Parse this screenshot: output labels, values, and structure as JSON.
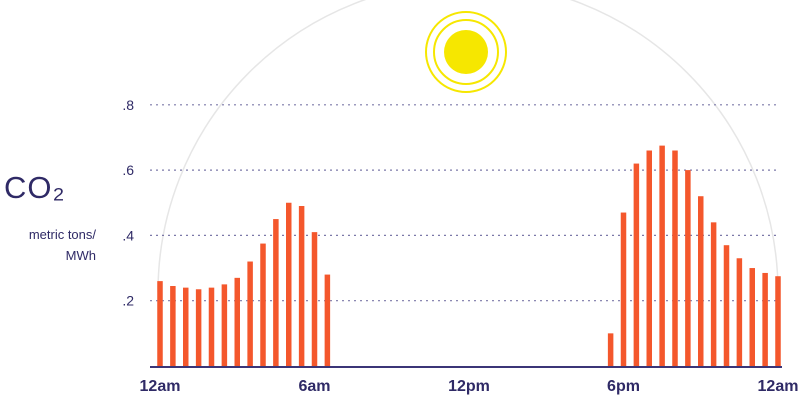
{
  "ylabel_main": "CO₂",
  "ylabel_unit": "metric tons/ MWh",
  "ylabel_unit_line1": "metric tons/",
  "ylabel_unit_line2": "MWh",
  "colors": {
    "bars": "#f4572c",
    "axis": "#3b3577",
    "text": "#2f2a66",
    "grid": "#7b78a8",
    "arc": "#e6e6e6",
    "sun": "#f6e700",
    "moon": "#2aaeea"
  },
  "icons": {
    "sun": "sun-icon",
    "moon_left": "moon-icon",
    "moon_right": "moon-icon"
  },
  "chart_data": {
    "type": "bar",
    "title": "",
    "xlabel": "",
    "ylabel": "CO₂ metric tons/ MWh",
    "ylim": [
      0,
      0.85
    ],
    "yticks": [
      0.2,
      0.4,
      0.6,
      0.8
    ],
    "ytick_labels": [
      ".2",
      ".4",
      ".6",
      ".8"
    ],
    "grid": "horizontal dotted",
    "xlim_hours": [
      0,
      24
    ],
    "xticks_hours": [
      0,
      6,
      12,
      18,
      24
    ],
    "xtick_labels": [
      "12am",
      "6am",
      "12pm",
      "6pm",
      "12am"
    ],
    "bar_hours": [
      0,
      0.5,
      1,
      1.5,
      2,
      2.5,
      3,
      3.5,
      4,
      4.5,
      5,
      5.5,
      6,
      6.5,
      17.5,
      18,
      18.5,
      19,
      19.5,
      20,
      20.5,
      21,
      21.5,
      22,
      22.5,
      23,
      23.5,
      24
    ],
    "values": [
      0.26,
      0.245,
      0.24,
      0.235,
      0.24,
      0.25,
      0.27,
      0.32,
      0.375,
      0.45,
      0.5,
      0.49,
      0.41,
      0.28,
      0.1,
      0.47,
      0.62,
      0.66,
      0.675,
      0.66,
      0.6,
      0.52,
      0.44,
      0.37,
      0.33,
      0.3,
      0.285,
      0.275
    ]
  }
}
